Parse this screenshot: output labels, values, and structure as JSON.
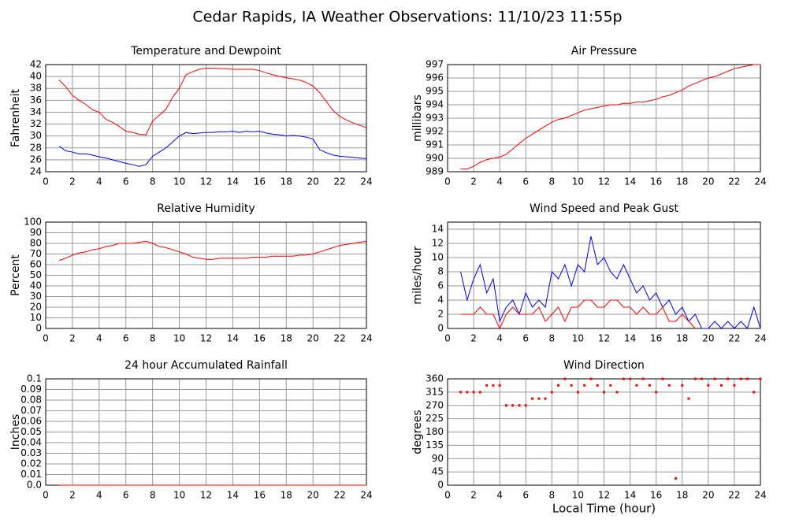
{
  "title": "Cedar Rapids, IA Weather Observations: 11/10/23 11:55p",
  "chart_data": [
    {
      "type": "line",
      "title": "Temperature and Dewpoint",
      "ylabel": "Fahrenheit",
      "x": [
        1,
        1.5,
        2,
        2.5,
        3,
        3.5,
        4,
        4.5,
        5,
        5.5,
        6,
        6.5,
        7,
        7.5,
        8,
        8.5,
        9,
        9.5,
        10,
        10.5,
        11,
        11.5,
        12,
        12.5,
        13,
        13.5,
        14,
        14.5,
        15,
        15.5,
        16,
        16.5,
        17,
        17.5,
        18,
        18.5,
        19,
        19.5,
        20,
        20.5,
        21,
        21.5,
        22,
        22.5,
        23,
        23.5,
        24
      ],
      "series": [
        {
          "color": "#ff0000",
          "values": [
            39.4,
            38.3,
            36.8,
            36,
            35.3,
            34.4,
            34,
            32.8,
            32.3,
            31.6,
            30.8,
            30.6,
            30.3,
            30.2,
            32.5,
            33.5,
            34.5,
            36.5,
            38,
            40.3,
            40.8,
            41.2,
            41.4,
            41.4,
            41.3,
            41.3,
            41.2,
            41.2,
            41.2,
            41.2,
            41,
            40.6,
            40.3,
            40,
            39.8,
            39.6,
            39.4,
            39,
            38.4,
            37.3,
            35.8,
            34.3,
            33.3,
            32.7,
            32.2,
            31.8,
            31.4
          ]
        },
        {
          "color": "#0000ff",
          "values": [
            28.3,
            27.5,
            27.3,
            27,
            27,
            26.8,
            26.5,
            26.3,
            26,
            25.7,
            25.4,
            25.2,
            24.9,
            25.2,
            26.6,
            27.3,
            28,
            29,
            30,
            30.6,
            30.4,
            30.5,
            30.6,
            30.6,
            30.7,
            30.7,
            30.8,
            30.6,
            30.8,
            30.7,
            30.8,
            30.5,
            30.3,
            30.2,
            30,
            30.1,
            30,
            29.8,
            29.5,
            27.7,
            27.2,
            26.8,
            26.6,
            26.5,
            26.4,
            26.3,
            26.2
          ]
        }
      ],
      "xlim": [
        0,
        24
      ],
      "xticks": [
        0,
        2,
        4,
        6,
        8,
        10,
        12,
        14,
        16,
        18,
        20,
        22,
        24
      ],
      "ylim": [
        24,
        42
      ],
      "yticks": [
        24,
        26,
        28,
        30,
        32,
        34,
        36,
        38,
        40,
        42
      ],
      "grid": true
    },
    {
      "type": "line",
      "title": "Air Pressure",
      "ylabel": "millibars",
      "x": [
        1,
        1.5,
        2,
        2.5,
        3,
        3.5,
        4,
        4.5,
        5,
        5.5,
        6,
        6.5,
        7,
        7.5,
        8,
        8.5,
        9,
        9.5,
        10,
        10.5,
        11,
        11.5,
        12,
        12.5,
        13,
        13.5,
        14,
        14.5,
        15,
        15.5,
        16,
        16.5,
        17,
        17.5,
        18,
        18.5,
        19,
        19.5,
        20,
        20.5,
        21,
        21.5,
        22,
        22.5,
        23,
        23.5,
        24
      ],
      "series": [
        {
          "color": "#ff0000",
          "values": [
            989.2,
            989.2,
            989.4,
            989.7,
            989.9,
            990,
            990.1,
            990.3,
            990.7,
            991.1,
            991.5,
            991.8,
            992.1,
            992.4,
            992.7,
            992.9,
            993,
            993.2,
            993.4,
            993.6,
            993.7,
            993.8,
            993.9,
            994,
            994,
            994.1,
            994.1,
            994.2,
            994.2,
            994.3,
            994.4,
            994.6,
            994.7,
            994.9,
            995.1,
            995.4,
            995.6,
            995.8,
            996,
            996.1,
            996.3,
            996.5,
            996.7,
            996.8,
            996.9,
            997,
            997
          ]
        }
      ],
      "xlim": [
        0,
        24
      ],
      "xticks": [
        0,
        2,
        4,
        6,
        8,
        10,
        12,
        14,
        16,
        18,
        20,
        22,
        24
      ],
      "ylim": [
        989,
        997
      ],
      "yticks": [
        989,
        990,
        991,
        992,
        993,
        994,
        995,
        996,
        997
      ],
      "grid": true
    },
    {
      "type": "line",
      "title": "Relative Humidity",
      "ylabel": "Percent",
      "x": [
        1,
        1.5,
        2,
        2.5,
        3,
        3.5,
        4,
        4.5,
        5,
        5.5,
        6,
        6.5,
        7,
        7.5,
        8,
        8.5,
        9,
        9.5,
        10,
        10.5,
        11,
        11.5,
        12,
        12.5,
        13,
        13.5,
        14,
        14.5,
        15,
        15.5,
        16,
        16.5,
        17,
        17.5,
        18,
        18.5,
        19,
        19.5,
        20,
        20.5,
        21,
        21.5,
        22,
        22.5,
        23,
        23.5,
        24
      ],
      "series": [
        {
          "color": "#ff0000",
          "values": [
            64,
            66,
            69,
            71,
            72,
            74,
            75,
            77,
            78,
            80,
            80,
            80,
            81,
            82,
            80,
            77,
            76,
            74,
            72,
            70,
            67,
            66,
            65,
            65,
            66,
            66,
            66,
            66,
            66,
            67,
            67,
            67,
            68,
            68,
            68,
            68,
            69,
            69,
            70,
            72,
            74,
            76,
            78,
            79,
            80,
            81,
            82
          ]
        }
      ],
      "xlim": [
        0,
        24
      ],
      "xticks": [
        0,
        2,
        4,
        6,
        8,
        10,
        12,
        14,
        16,
        18,
        20,
        22,
        24
      ],
      "ylim": [
        0,
        100
      ],
      "yticks": [
        0,
        10,
        20,
        30,
        40,
        50,
        60,
        70,
        80,
        90,
        100
      ],
      "grid": true
    },
    {
      "type": "line",
      "title": "Wind Speed and Peak Gust",
      "ylabel": "miles/hour",
      "x": [
        1,
        1.5,
        2,
        2.5,
        3,
        3.5,
        4,
        4.5,
        5,
        5.5,
        6,
        6.5,
        7,
        7.5,
        8,
        8.5,
        9,
        9.5,
        10,
        10.5,
        11,
        11.5,
        12,
        12.5,
        13,
        13.5,
        14,
        14.5,
        15,
        15.5,
        16,
        16.5,
        17,
        17.5,
        18,
        18.5,
        19,
        19.5,
        20,
        20.5,
        21,
        21.5,
        22,
        22.5,
        23,
        23.5,
        24
      ],
      "series": [
        {
          "color": "#0000ff",
          "values": [
            8,
            4,
            7,
            9,
            5,
            7,
            1,
            3,
            4,
            2,
            5,
            3,
            4,
            3,
            8,
            7,
            9,
            6,
            9,
            8,
            13,
            9,
            10,
            8,
            7,
            9,
            7,
            5,
            6,
            4,
            5,
            3,
            4,
            2,
            3,
            1,
            2,
            0,
            0,
            1,
            0,
            1,
            0,
            1,
            0,
            3,
            0
          ]
        },
        {
          "color": "#ff0000",
          "values": [
            2,
            2,
            2,
            3,
            2,
            2,
            0,
            2,
            3,
            2,
            2,
            2,
            3,
            1,
            2,
            3,
            1,
            3,
            3,
            4,
            4,
            3,
            3,
            4,
            4,
            3,
            3,
            2,
            3,
            2,
            2,
            3,
            1,
            1,
            2,
            1,
            0,
            null,
            null,
            null,
            null,
            null,
            null,
            null,
            null,
            null,
            null
          ]
        }
      ],
      "xlim": [
        0,
        24
      ],
      "xticks": [
        0,
        2,
        4,
        6,
        8,
        10,
        12,
        14,
        16,
        18,
        20,
        22,
        24
      ],
      "ylim": [
        0,
        15
      ],
      "yticks": [
        0,
        2,
        4,
        6,
        8,
        10,
        12,
        14
      ],
      "grid": true
    },
    {
      "type": "line",
      "title": "24 hour Accumulated Rainfall",
      "ylabel": "Inches",
      "x": [
        1,
        24
      ],
      "series": [
        {
          "color": "#ff0000",
          "values": [
            0,
            0
          ]
        }
      ],
      "xlim": [
        0,
        24
      ],
      "xticks": [
        0,
        2,
        4,
        6,
        8,
        10,
        12,
        14,
        16,
        18,
        20,
        22,
        24
      ],
      "ylim": [
        0,
        0.1
      ],
      "yticks": [
        {
          "value": 0,
          "label": "0.0"
        },
        0.01,
        0.02,
        0.03,
        0.04,
        0.05,
        0.06,
        0.07,
        0.08,
        0.09,
        0.1
      ],
      "grid": true
    },
    {
      "type": "scatter",
      "title": "Wind Direction",
      "ylabel": "degrees",
      "xlabel": "Local Time (hour)",
      "x": [
        1,
        1.5,
        2,
        2.5,
        3,
        3.5,
        4,
        4.5,
        5,
        5.5,
        6,
        6.5,
        7,
        7.5,
        8,
        8.5,
        9,
        9.5,
        10,
        10.5,
        11,
        11.5,
        12,
        12.5,
        13,
        13.5,
        14,
        14.5,
        15,
        15.5,
        16,
        16.5,
        17,
        17.5,
        18,
        18.5,
        19,
        19.5,
        20,
        20.5,
        21,
        21.5,
        22,
        22.5,
        23,
        23.5,
        24
      ],
      "series": [
        {
          "color": "#ff0000",
          "values": [
            315,
            315,
            315,
            315,
            338,
            338,
            338,
            270,
            270,
            270,
            270,
            293,
            293,
            293,
            315,
            338,
            360,
            338,
            315,
            338,
            360,
            338,
            315,
            338,
            315,
            360,
            360,
            338,
            360,
            338,
            315,
            360,
            338,
            23,
            338,
            293,
            360,
            360,
            338,
            360,
            338,
            360,
            338,
            360,
            360,
            315,
            360
          ]
        }
      ],
      "xlim": [
        0,
        24
      ],
      "xticks": [
        0,
        2,
        4,
        6,
        8,
        10,
        12,
        14,
        16,
        18,
        20,
        22,
        24
      ],
      "ylim": [
        0,
        360
      ],
      "yticks": [
        0,
        45,
        90,
        135,
        180,
        225,
        270,
        315,
        360
      ],
      "grid": true
    }
  ]
}
